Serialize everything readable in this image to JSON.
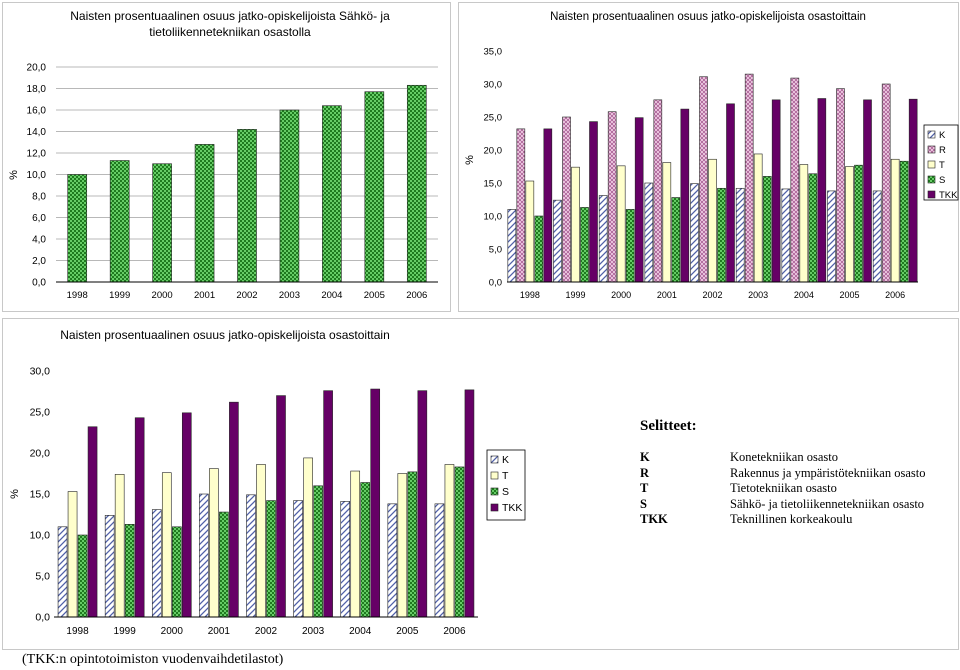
{
  "years": [
    "1998",
    "1999",
    "2000",
    "2001",
    "2002",
    "2003",
    "2004",
    "2005",
    "2006"
  ],
  "colors": {
    "K": "#ffffff",
    "R": "#e7b6d8",
    "T": "#ffffcc",
    "S": "#3aa53a",
    "TKK": "#660066"
  },
  "chart_data": [
    {
      "type": "bar",
      "title": "Naisten prosentuaalinen osuus jatko-opiskelijoista Sähkö- ja tietoliikennetekniikan osastolla",
      "title_lines": [
        "Naisten prosentuaalinen osuus jatko-opiskelijoista Sähkö- ja",
        "tietoliikennetekniikan osastolla"
      ],
      "ylabel": "%",
      "ylim": [
        0,
        20
      ],
      "ytick_step": 2,
      "yticks": [
        "0,0",
        "2,0",
        "4,0",
        "6,0",
        "8,0",
        "10,0",
        "12,0",
        "14,0",
        "16,0",
        "18,0",
        "20,0"
      ],
      "categories": [
        "1998",
        "1999",
        "2000",
        "2001",
        "2002",
        "2003",
        "2004",
        "2005",
        "2006"
      ],
      "series": [
        {
          "name": "S",
          "values": [
            10.0,
            11.3,
            11.0,
            12.8,
            14.2,
            16.0,
            16.4,
            17.7,
            18.3
          ]
        }
      ]
    },
    {
      "type": "bar",
      "title": "Naisten prosentuaalinen osuus jatko-opiskelijoista osastoittain",
      "ylabel": "%",
      "ylim": [
        0,
        35
      ],
      "ytick_step": 5,
      "yticks": [
        "0,0",
        "5,0",
        "10,0",
        "15,0",
        "20,0",
        "25,0",
        "30,0",
        "35,0"
      ],
      "categories": [
        "1998",
        "1999",
        "2000",
        "2001",
        "2002",
        "2003",
        "2004",
        "2005",
        "2006"
      ],
      "legend": [
        "K",
        "R",
        "T",
        "S",
        "TKK"
      ],
      "series": [
        {
          "name": "K",
          "values": [
            11.0,
            12.4,
            13.1,
            15.0,
            14.9,
            14.2,
            14.1,
            13.8,
            13.8
          ]
        },
        {
          "name": "R",
          "values": [
            23.2,
            25.0,
            25.8,
            27.6,
            31.1,
            31.5,
            30.9,
            29.3,
            30.0
          ]
        },
        {
          "name": "T",
          "values": [
            15.3,
            17.4,
            17.6,
            18.1,
            18.6,
            19.4,
            17.8,
            17.5,
            18.6
          ]
        },
        {
          "name": "S",
          "values": [
            10.0,
            11.3,
            11.0,
            12.8,
            14.2,
            16.0,
            16.4,
            17.7,
            18.3
          ]
        },
        {
          "name": "TKK",
          "values": [
            23.2,
            24.3,
            24.9,
            26.2,
            27.0,
            27.6,
            27.8,
            27.6,
            27.7
          ]
        }
      ]
    },
    {
      "type": "bar",
      "title": "Naisten prosentuaalinen osuus jatko-opiskelijoista osastoittain",
      "ylabel": "%",
      "ylim": [
        0,
        30
      ],
      "ytick_step": 5,
      "yticks": [
        "0,0",
        "5,0",
        "10,0",
        "15,0",
        "20,0",
        "25,0",
        "30,0"
      ],
      "categories": [
        "1998",
        "1999",
        "2000",
        "2001",
        "2002",
        "2003",
        "2004",
        "2005",
        "2006"
      ],
      "legend": [
        "K",
        "T",
        "S",
        "TKK"
      ],
      "series": [
        {
          "name": "K",
          "values": [
            11.0,
            12.4,
            13.1,
            15.0,
            14.9,
            14.2,
            14.1,
            13.8,
            13.8
          ]
        },
        {
          "name": "T",
          "values": [
            15.3,
            17.4,
            17.6,
            18.1,
            18.6,
            19.4,
            17.8,
            17.5,
            18.6
          ]
        },
        {
          "name": "S",
          "values": [
            10.0,
            11.3,
            11.0,
            12.8,
            14.2,
            16.0,
            16.4,
            17.7,
            18.3
          ]
        },
        {
          "name": "TKK",
          "values": [
            23.2,
            24.3,
            24.9,
            26.2,
            27.0,
            27.6,
            27.8,
            27.6,
            27.7
          ]
        }
      ]
    }
  ],
  "legend_section": {
    "title": "Selitteet:",
    "items": [
      {
        "abbr": "K",
        "desc": "Konetekniikan osasto"
      },
      {
        "abbr": "R",
        "desc": "Rakennus ja ympäristötekniikan osasto"
      },
      {
        "abbr": "T",
        "desc": "Tietotekniikan osasto"
      },
      {
        "abbr": "S",
        "desc": "Sähkö- ja tietoliikennetekniikan osasto"
      },
      {
        "abbr": "TKK",
        "desc": "Teknillinen korkeakoulu"
      }
    ]
  },
  "footnote": "(TKK:n opintotoimiston vuodenvaihdetilastot)"
}
